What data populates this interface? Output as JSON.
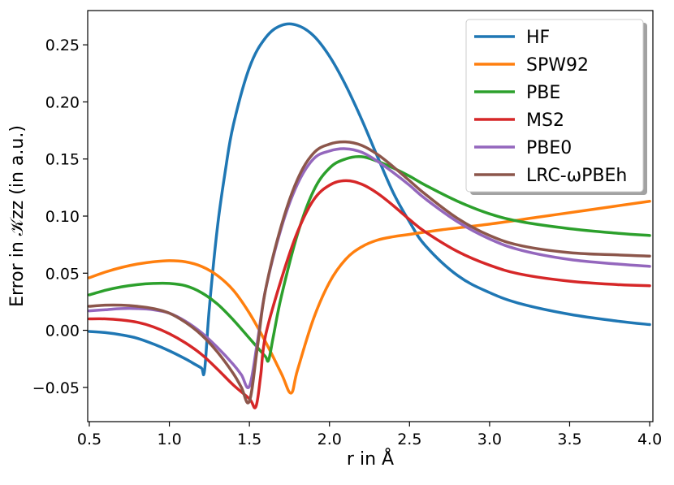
{
  "chart_data": {
    "type": "line",
    "title": "",
    "xlabel": "r in Å",
    "ylabel": "Error in 𝒦zz (in a.u.)",
    "xlim": [
      0.49,
      4.02
    ],
    "ylim": [
      -0.08,
      0.28
    ],
    "grid": false,
    "legend_position": "top-right",
    "x_ticks": [
      0.5,
      1.0,
      1.5,
      2.0,
      2.5,
      3.0,
      3.5,
      4.0
    ],
    "y_ticks": [
      -0.05,
      0.0,
      0.05,
      0.1,
      0.15,
      0.2,
      0.25
    ],
    "x_tick_labels": [
      "0.5",
      "1.0",
      "1.5",
      "2.0",
      "2.5",
      "3.0",
      "3.5",
      "4.0"
    ],
    "y_tick_labels": [
      "−0.05",
      "0.00",
      "0.05",
      "0.10",
      "0.15",
      "0.20",
      "0.25"
    ],
    "series": [
      {
        "name": "HF",
        "color": "#1f77b4",
        "x": [
          0.5,
          0.6,
          0.7,
          0.8,
          0.9,
          1.0,
          1.1,
          1.15,
          1.2,
          1.22,
          1.25,
          1.3,
          1.35,
          1.4,
          1.5,
          1.6,
          1.7,
          1.8,
          1.9,
          2.0,
          2.1,
          2.2,
          2.3,
          2.4,
          2.5,
          2.6,
          2.8,
          3.0,
          3.2,
          3.5,
          3.8,
          4.0
        ],
        "y": [
          -0.001,
          -0.002,
          -0.004,
          -0.007,
          -0.012,
          -0.018,
          -0.025,
          -0.029,
          -0.033,
          -0.035,
          0.02,
          0.09,
          0.14,
          0.18,
          0.23,
          0.256,
          0.267,
          0.267,
          0.258,
          0.24,
          0.215,
          0.185,
          0.152,
          0.12,
          0.095,
          0.074,
          0.048,
          0.033,
          0.023,
          0.014,
          0.008,
          0.005
        ]
      },
      {
        "name": "SPW92",
        "color": "#ff7f0e",
        "x": [
          0.5,
          0.6,
          0.7,
          0.8,
          0.9,
          1.0,
          1.1,
          1.2,
          1.3,
          1.4,
          1.5,
          1.6,
          1.7,
          1.76,
          1.8,
          1.9,
          2.0,
          2.1,
          2.2,
          2.3,
          2.4,
          2.5,
          2.7,
          3.0,
          3.3,
          3.6,
          4.0
        ],
        "y": [
          0.046,
          0.051,
          0.055,
          0.058,
          0.06,
          0.061,
          0.06,
          0.056,
          0.048,
          0.035,
          0.015,
          -0.01,
          -0.038,
          -0.055,
          -0.035,
          0.01,
          0.042,
          0.062,
          0.073,
          0.079,
          0.082,
          0.084,
          0.088,
          0.093,
          0.099,
          0.105,
          0.113
        ]
      },
      {
        "name": "PBE",
        "color": "#2ca02c",
        "x": [
          0.5,
          0.6,
          0.7,
          0.8,
          0.9,
          1.0,
          1.1,
          1.2,
          1.3,
          1.4,
          1.5,
          1.55,
          1.6,
          1.62,
          1.65,
          1.7,
          1.8,
          1.9,
          2.0,
          2.1,
          2.2,
          2.3,
          2.4,
          2.5,
          2.6,
          2.8,
          3.0,
          3.2,
          3.5,
          3.8,
          4.0
        ],
        "y": [
          0.031,
          0.035,
          0.038,
          0.04,
          0.041,
          0.041,
          0.039,
          0.033,
          0.023,
          0.009,
          -0.007,
          -0.015,
          -0.023,
          -0.026,
          -0.005,
          0.03,
          0.084,
          0.122,
          0.142,
          0.15,
          0.152,
          0.148,
          0.142,
          0.135,
          0.127,
          0.113,
          0.102,
          0.095,
          0.089,
          0.085,
          0.083
        ]
      },
      {
        "name": "MS2",
        "color": "#d62728",
        "x": [
          0.5,
          0.6,
          0.7,
          0.8,
          0.9,
          1.0,
          1.1,
          1.2,
          1.3,
          1.4,
          1.5,
          1.54,
          1.57,
          1.6,
          1.7,
          1.8,
          1.9,
          2.0,
          2.1,
          2.2,
          2.3,
          2.4,
          2.5,
          2.6,
          2.8,
          3.0,
          3.2,
          3.5,
          3.8,
          4.0
        ],
        "y": [
          0.01,
          0.01,
          0.009,
          0.007,
          0.003,
          -0.003,
          -0.011,
          -0.021,
          -0.034,
          -0.048,
          -0.06,
          -0.067,
          -0.04,
          -0.005,
          0.045,
          0.086,
          0.114,
          0.127,
          0.131,
          0.128,
          0.12,
          0.109,
          0.097,
          0.086,
          0.069,
          0.057,
          0.049,
          0.043,
          0.04,
          0.039
        ]
      },
      {
        "name": "PBE0",
        "color": "#9467bd",
        "x": [
          0.5,
          0.6,
          0.7,
          0.8,
          0.9,
          1.0,
          1.1,
          1.2,
          1.3,
          1.4,
          1.45,
          1.5,
          1.55,
          1.6,
          1.7,
          1.8,
          1.9,
          2.0,
          2.1,
          2.2,
          2.3,
          2.4,
          2.5,
          2.6,
          2.8,
          3.0,
          3.2,
          3.5,
          3.8,
          4.0
        ],
        "y": [
          0.017,
          0.018,
          0.019,
          0.019,
          0.018,
          0.015,
          0.008,
          -0.002,
          -0.015,
          -0.03,
          -0.039,
          -0.049,
          -0.01,
          0.035,
          0.09,
          0.128,
          0.15,
          0.157,
          0.159,
          0.156,
          0.148,
          0.138,
          0.127,
          0.115,
          0.095,
          0.08,
          0.07,
          0.062,
          0.058,
          0.056
        ]
      },
      {
        "name": "LRC-ωPBEh",
        "color": "#8c564b",
        "x": [
          0.5,
          0.6,
          0.7,
          0.8,
          0.9,
          1.0,
          1.1,
          1.2,
          1.3,
          1.4,
          1.45,
          1.5,
          1.55,
          1.6,
          1.7,
          1.8,
          1.9,
          2.0,
          2.1,
          2.2,
          2.3,
          2.4,
          2.5,
          2.6,
          2.8,
          3.0,
          3.2,
          3.5,
          3.8,
          4.0
        ],
        "y": [
          0.021,
          0.022,
          0.022,
          0.021,
          0.019,
          0.015,
          0.007,
          -0.004,
          -0.019,
          -0.038,
          -0.05,
          -0.062,
          -0.015,
          0.035,
          0.092,
          0.132,
          0.155,
          0.163,
          0.165,
          0.162,
          0.154,
          0.143,
          0.131,
          0.119,
          0.098,
          0.083,
          0.074,
          0.068,
          0.066,
          0.065
        ]
      }
    ]
  }
}
